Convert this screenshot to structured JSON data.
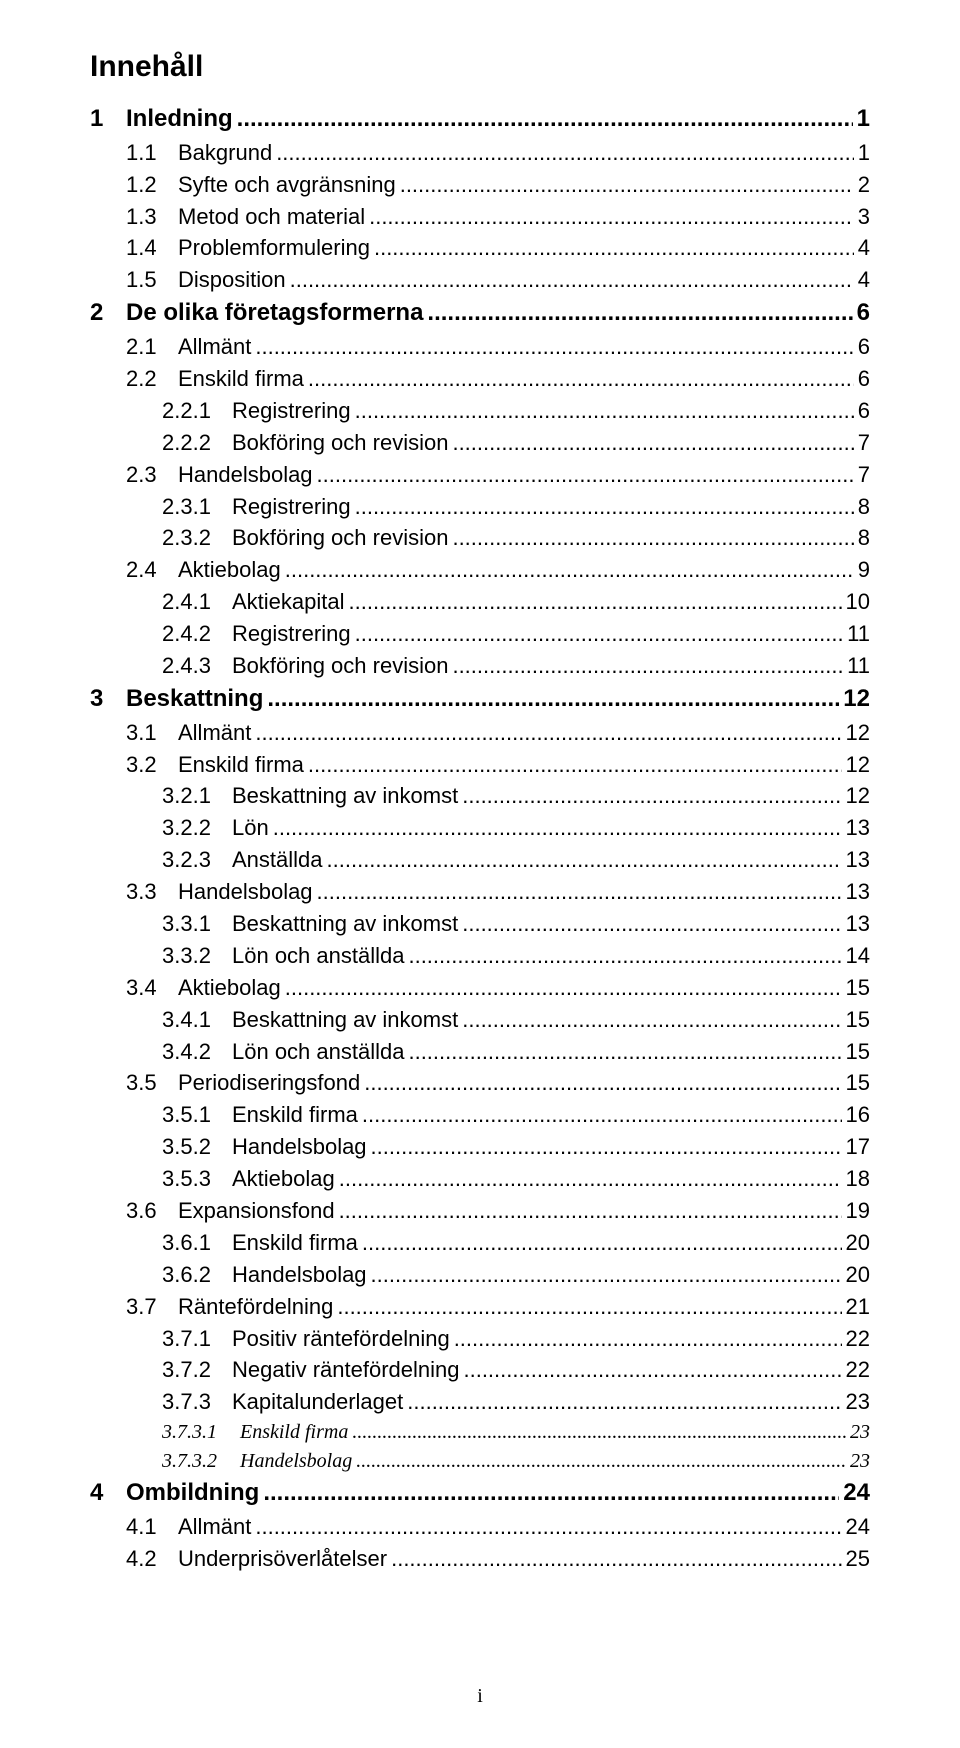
{
  "title": "Innehåll",
  "leader_char": ".",
  "footer": "i",
  "entries": [
    {
      "level": 1,
      "num": "1",
      "title": "Inledning",
      "page": "1"
    },
    {
      "level": 2,
      "num": "1.1",
      "title": "Bakgrund",
      "page": "1"
    },
    {
      "level": 2,
      "num": "1.2",
      "title": "Syfte och avgränsning",
      "page": "2"
    },
    {
      "level": 2,
      "num": "1.3",
      "title": "Metod och material",
      "page": "3"
    },
    {
      "level": 2,
      "num": "1.4",
      "title": "Problemformulering",
      "page": "4"
    },
    {
      "level": 2,
      "num": "1.5",
      "title": "Disposition",
      "page": "4"
    },
    {
      "level": 1,
      "num": "2",
      "title": "De olika företagsformerna",
      "page": "6"
    },
    {
      "level": 2,
      "num": "2.1",
      "title": "Allmänt",
      "page": "6"
    },
    {
      "level": 2,
      "num": "2.2",
      "title": "Enskild firma",
      "page": "6"
    },
    {
      "level": 3,
      "num": "2.2.1",
      "title": "Registrering",
      "page": "6"
    },
    {
      "level": 3,
      "num": "2.2.2",
      "title": "Bokföring och revision",
      "page": "7"
    },
    {
      "level": 2,
      "num": "2.3",
      "title": "Handelsbolag",
      "page": "7"
    },
    {
      "level": 3,
      "num": "2.3.1",
      "title": "Registrering",
      "page": "8"
    },
    {
      "level": 3,
      "num": "2.3.2",
      "title": "Bokföring och revision",
      "page": "8"
    },
    {
      "level": 2,
      "num": "2.4",
      "title": "Aktiebolag",
      "page": "9"
    },
    {
      "level": 3,
      "num": "2.4.1",
      "title": "Aktiekapital",
      "page": "10"
    },
    {
      "level": 3,
      "num": "2.4.2",
      "title": "Registrering",
      "page": "11"
    },
    {
      "level": 3,
      "num": "2.4.3",
      "title": "Bokföring och revision",
      "page": "11"
    },
    {
      "level": 1,
      "num": "3",
      "title": "Beskattning",
      "page": "12"
    },
    {
      "level": 2,
      "num": "3.1",
      "title": "Allmänt",
      "page": "12"
    },
    {
      "level": 2,
      "num": "3.2",
      "title": "Enskild firma",
      "page": "12"
    },
    {
      "level": 3,
      "num": "3.2.1",
      "title": "Beskattning av inkomst",
      "page": "12"
    },
    {
      "level": 3,
      "num": "3.2.2",
      "title": "Lön",
      "page": "13"
    },
    {
      "level": 3,
      "num": "3.2.3",
      "title": "Anställda",
      "page": "13"
    },
    {
      "level": 2,
      "num": "3.3",
      "title": "Handelsbolag",
      "page": "13"
    },
    {
      "level": 3,
      "num": "3.3.1",
      "title": "Beskattning av inkomst",
      "page": "13"
    },
    {
      "level": 3,
      "num": "3.3.2",
      "title": "Lön och anställda",
      "page": "14"
    },
    {
      "level": 2,
      "num": "3.4",
      "title": "Aktiebolag",
      "page": "15"
    },
    {
      "level": 3,
      "num": "3.4.1",
      "title": "Beskattning av inkomst",
      "page": "15"
    },
    {
      "level": 3,
      "num": "3.4.2",
      "title": "Lön och anställda",
      "page": "15"
    },
    {
      "level": 2,
      "num": "3.5",
      "title": "Periodiseringsfond",
      "page": "15"
    },
    {
      "level": 3,
      "num": "3.5.1",
      "title": "Enskild firma",
      "page": "16"
    },
    {
      "level": 3,
      "num": "3.5.2",
      "title": "Handelsbolag",
      "page": "17"
    },
    {
      "level": 3,
      "num": "3.5.3",
      "title": "Aktiebolag",
      "page": "18"
    },
    {
      "level": 2,
      "num": "3.6",
      "title": "Expansionsfond",
      "page": "19"
    },
    {
      "level": 3,
      "num": "3.6.1",
      "title": "Enskild firma",
      "page": "20"
    },
    {
      "level": 3,
      "num": "3.6.2",
      "title": "Handelsbolag",
      "page": "20"
    },
    {
      "level": 2,
      "num": "3.7",
      "title": "Räntefördelning",
      "page": "21"
    },
    {
      "level": 3,
      "num": "3.7.1",
      "title": "Positiv räntefördelning",
      "page": "22"
    },
    {
      "level": 3,
      "num": "3.7.2",
      "title": "Negativ räntefördelning",
      "page": "22"
    },
    {
      "level": 3,
      "num": "3.7.3",
      "title": "Kapitalunderlaget",
      "page": "23"
    },
    {
      "level": 4,
      "num": "3.7.3.1",
      "title": "Enskild firma",
      "page": "23"
    },
    {
      "level": 4,
      "num": "3.7.3.2",
      "title": "Handelsbolag",
      "page": "23"
    },
    {
      "level": 1,
      "num": "4",
      "title": "Ombildning",
      "page": "24"
    },
    {
      "level": 2,
      "num": "4.1",
      "title": "Allmänt",
      "page": "24"
    },
    {
      "level": 2,
      "num": "4.2",
      "title": "Underprisöverlåtelser",
      "page": "25"
    }
  ]
}
